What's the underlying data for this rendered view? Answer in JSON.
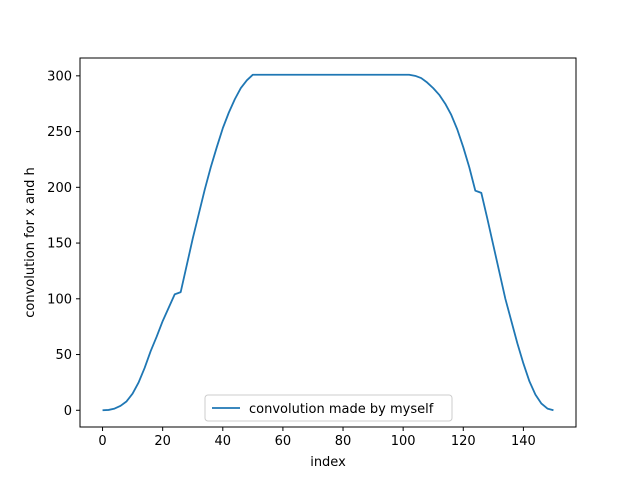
{
  "chart_data": {
    "type": "line",
    "title": "",
    "xlabel": "index",
    "ylabel": "convolution for x and h",
    "xlim": [
      -7.5,
      157.5
    ],
    "ylim": [
      -15,
      316
    ],
    "xticks": [
      0,
      20,
      40,
      60,
      80,
      100,
      120,
      140
    ],
    "yticks": [
      0,
      50,
      100,
      150,
      200,
      250,
      300
    ],
    "grid": false,
    "legend_position": "lower center",
    "series": [
      {
        "name": "convolution made by myself",
        "color": "#1f77b4",
        "x": [
          0,
          2,
          4,
          6,
          8,
          10,
          12,
          14,
          16,
          18,
          20,
          22,
          24,
          25,
          26,
          28,
          30,
          32,
          34,
          36,
          38,
          40,
          42,
          44,
          46,
          48,
          50,
          55,
          60,
          70,
          80,
          90,
          100,
          102,
          104,
          106,
          108,
          110,
          112,
          114,
          116,
          118,
          120,
          122,
          124,
          125,
          126,
          128,
          130,
          132,
          134,
          136,
          138,
          140,
          142,
          144,
          146,
          148,
          150
        ],
        "y": [
          0,
          0.3,
          1.5,
          4,
          8,
          15,
          25,
          38,
          53,
          66,
          80,
          92,
          104,
          105,
          106,
          130,
          154,
          176,
          198,
          218,
          236,
          253,
          267,
          279,
          289,
          296,
          301,
          301,
          301,
          301,
          301,
          301,
          301,
          301,
          300,
          298,
          294,
          289,
          283,
          275,
          265,
          252,
          236,
          218,
          197,
          196,
          195,
          172,
          148,
          124,
          100,
          80,
          60,
          42,
          26,
          14,
          6,
          1.5,
          0
        ]
      }
    ]
  }
}
